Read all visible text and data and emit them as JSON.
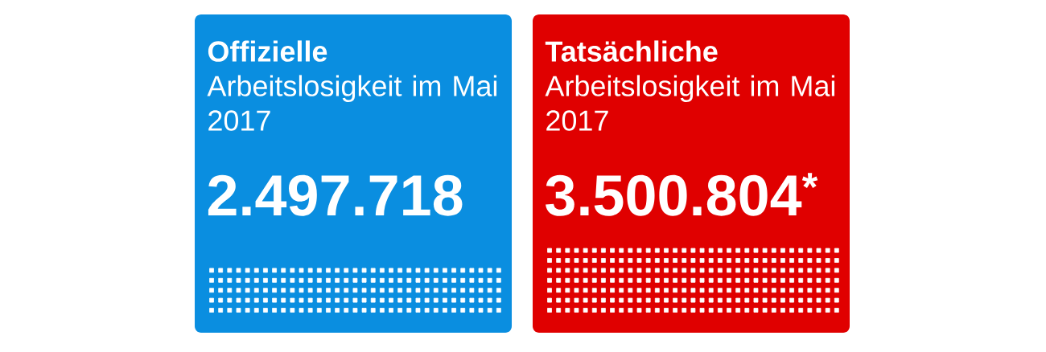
{
  "chart_data": {
    "type": "other",
    "categories": [
      "**Offizielle** Arbeitslosigkeit im Mai 2017",
      "**Tatsächliche** Arbeitslosigkeit im Mai 2017"
    ],
    "values": [
      2497718,
      3500804
    ],
    "value_labels": [
      "2.497.718",
      "3.500.804$^{*}$"
    ],
    "colors": [
      "#0a8ee0",
      "#e00000"
    ]
  }
}
